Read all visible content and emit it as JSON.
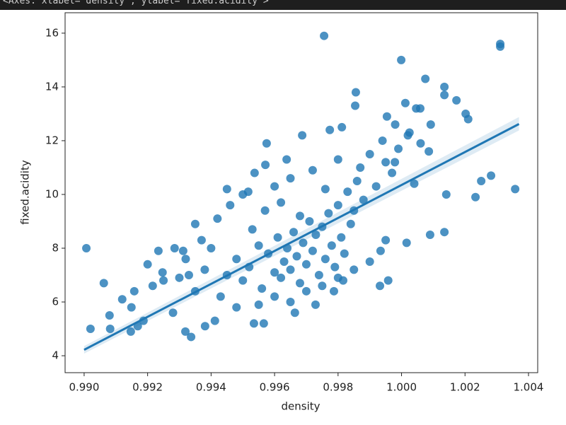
{
  "header": "<Axes: xlabel='density', ylabel='fixed.acidity'>",
  "chart_data": {
    "type": "scatter",
    "xlabel": "density",
    "ylabel": "fixed.acidity",
    "color": "#1f77b4",
    "x": [
      0.99756,
      1.00311,
      1.00311,
      0.99999,
      1.00075,
      1.00135,
      1.00135,
      1.00173,
      1.00202,
      1.0021,
      0.99856,
      1.00358,
      1.00282,
      1.00251,
      1.00233,
      1.00141,
      1.0009,
      1.00135,
      1.00016,
      0.99007,
      0.99062,
      0.9902,
      0.9908,
      0.9912,
      0.99082,
      0.99158,
      0.99149,
      0.99187,
      0.99147,
      0.99169,
      0.99216,
      0.99234,
      0.99247,
      0.99285,
      0.99319,
      0.99337,
      0.99312,
      0.9935,
      0.9945,
      0.99517,
      0.99575,
      0.99537,
      0.99571,
      0.99638,
      0.99687,
      0.99774,
      0.99812,
      0.99854,
      0.99954,
      1.00012,
      1.00046,
      1.00059,
      1.00092,
      1.00025,
      1.00086,
      0.99979,
      0.99934,
      0.99958,
      0.99932,
      0.99535,
      0.99566,
      0.99412,
      0.99381,
      0.99664,
      0.99729,
      0.99787,
      0.99816,
      0.9945,
      0.9948,
      0.995,
      0.9952,
      0.9955,
      0.9956,
      0.9958,
      0.996,
      0.9961,
      0.9962,
      0.9963,
      0.9964,
      0.9965,
      0.9966,
      0.9967,
      0.9968,
      0.9969,
      0.997,
      0.9971,
      0.9972,
      0.9973,
      0.9974,
      0.9975,
      0.9976,
      0.9977,
      0.9978,
      0.9979,
      0.998,
      0.9981,
      0.9982,
      0.9983,
      0.9984,
      0.9985,
      0.9986,
      0.9987,
      0.9988,
      0.999,
      0.9992,
      0.9994,
      0.9995,
      0.9997,
      0.9998,
      0.9999,
      1.0002,
      1.0004,
      1.0006,
      0.994,
      0.9938,
      0.9935,
      0.9932,
      0.993,
      0.9928,
      0.9942,
      0.9946,
      0.995,
      0.9953,
      0.9957,
      0.996,
      0.9962,
      0.9965,
      0.9968,
      0.9972,
      0.9976,
      0.998,
      0.9955,
      0.996,
      0.9965,
      0.997,
      0.9975,
      0.998,
      0.9985,
      0.999,
      0.9995,
      0.9937,
      0.9943,
      0.9948,
      0.9925,
      0.992,
      0.9933
    ],
    "values": [
      15.9,
      15.6,
      15.5,
      15.0,
      14.3,
      14.0,
      13.7,
      13.5,
      13.0,
      12.8,
      13.8,
      10.2,
      10.7,
      10.5,
      9.9,
      10.0,
      8.5,
      8.6,
      8.2,
      8.0,
      6.7,
      5.0,
      5.5,
      6.1,
      5.0,
      6.4,
      5.8,
      5.3,
      4.9,
      5.1,
      6.6,
      7.9,
      7.1,
      8.0,
      4.9,
      4.7,
      7.9,
      8.9,
      10.2,
      10.1,
      11.9,
      10.8,
      11.1,
      11.3,
      12.2,
      12.4,
      12.5,
      13.3,
      12.9,
      13.4,
      13.2,
      13.2,
      12.6,
      12.3,
      11.6,
      11.2,
      7.9,
      6.8,
      6.6,
      5.2,
      5.2,
      5.3,
      5.1,
      5.6,
      5.9,
      6.4,
      6.8,
      7.0,
      7.6,
      6.8,
      7.3,
      8.1,
      6.5,
      7.8,
      7.1,
      8.4,
      6.9,
      7.5,
      8.0,
      7.2,
      8.6,
      7.7,
      6.7,
      8.2,
      7.4,
      9.0,
      7.9,
      8.5,
      7.0,
      8.8,
      7.6,
      9.3,
      8.1,
      7.3,
      9.6,
      8.4,
      7.8,
      10.1,
      8.9,
      9.4,
      10.5,
      11.0,
      9.8,
      11.5,
      10.3,
      12.0,
      11.2,
      10.8,
      12.6,
      11.7,
      12.2,
      10.4,
      11.9,
      8.0,
      7.2,
      6.4,
      7.6,
      6.9,
      5.6,
      9.1,
      9.6,
      10.0,
      8.7,
      9.4,
      10.3,
      9.7,
      10.6,
      9.2,
      10.9,
      10.2,
      11.3,
      5.9,
      6.2,
      6.0,
      6.4,
      6.6,
      6.9,
      7.2,
      7.5,
      8.3,
      8.3,
      6.2,
      5.8,
      6.8,
      7.4,
      7.0
    ],
    "fit": {
      "x": [
        0.99,
        1.0037
      ],
      "y": [
        4.22,
        12.62
      ],
      "lower": [
        4.08,
        12.38
      ],
      "upper": [
        4.36,
        12.88
      ]
    },
    "xlim": [
      0.9894,
      1.00429
    ],
    "ylim": [
      3.37,
      16.76
    ],
    "xticks": [
      {
        "value": 0.99,
        "label": "0.990"
      },
      {
        "value": 0.992,
        "label": "0.992"
      },
      {
        "value": 0.994,
        "label": "0.994"
      },
      {
        "value": 0.996,
        "label": "0.996"
      },
      {
        "value": 0.998,
        "label": "0.998"
      },
      {
        "value": 1.0,
        "label": "1.000"
      },
      {
        "value": 1.002,
        "label": "1.002"
      },
      {
        "value": 1.004,
        "label": "1.004"
      }
    ],
    "yticks": [
      4,
      6,
      8,
      10,
      12,
      14,
      16
    ]
  }
}
